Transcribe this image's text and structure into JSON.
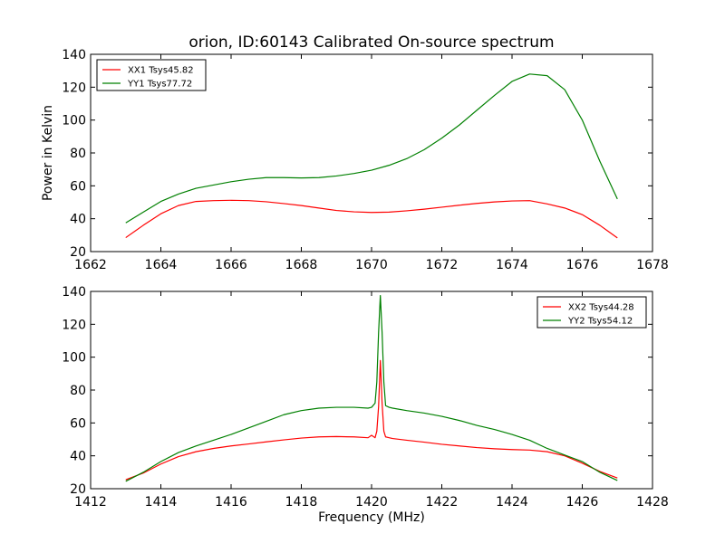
{
  "chart_data": [
    {
      "type": "line",
      "title": "orion, ID:60143 Calibrated On-source spectrum",
      "xlabel": "",
      "ylabel": "Power in Kelvin",
      "xlim": [
        1662,
        1678
      ],
      "ylim": [
        20,
        140
      ],
      "xticks": [
        "1662",
        "1664",
        "1666",
        "1668",
        "1670",
        "1672",
        "1674",
        "1676",
        "1678"
      ],
      "yticks": [
        "20",
        "40",
        "60",
        "80",
        "100",
        "120",
        "140"
      ],
      "legend_position": "top-left",
      "series": [
        {
          "name": "XX1 Tsys45.82",
          "color": "#ff0000",
          "x": [
            1663.0,
            1663.5,
            1664.0,
            1664.5,
            1665.0,
            1665.5,
            1666.0,
            1666.5,
            1667.0,
            1667.5,
            1668.0,
            1668.5,
            1669.0,
            1669.5,
            1670.0,
            1670.5,
            1671.0,
            1671.5,
            1672.0,
            1672.5,
            1673.0,
            1673.5,
            1674.0,
            1674.5,
            1675.0,
            1675.5,
            1676.0,
            1676.5,
            1677.0
          ],
          "values": [
            28.5,
            36.0,
            43.0,
            48.0,
            50.5,
            51.0,
            51.2,
            51.0,
            50.3,
            49.2,
            48.0,
            46.5,
            45.0,
            44.2,
            43.8,
            44.0,
            44.8,
            45.8,
            47.0,
            48.2,
            49.3,
            50.2,
            50.8,
            51.0,
            49.0,
            46.5,
            42.5,
            36.0,
            28.3
          ]
        },
        {
          "name": "YY1 Tsys77.72",
          "color": "#008000",
          "x": [
            1663.0,
            1663.5,
            1664.0,
            1664.5,
            1665.0,
            1665.5,
            1666.0,
            1666.5,
            1667.0,
            1667.5,
            1668.0,
            1668.5,
            1669.0,
            1669.5,
            1670.0,
            1670.5,
            1671.0,
            1671.5,
            1672.0,
            1672.5,
            1673.0,
            1673.5,
            1674.0,
            1674.5,
            1675.0,
            1675.5,
            1676.0,
            1676.5,
            1677.0
          ],
          "values": [
            37.5,
            44.0,
            50.5,
            55.0,
            58.5,
            60.5,
            62.5,
            64.0,
            65.0,
            65.0,
            64.8,
            65.0,
            66.0,
            67.5,
            69.5,
            72.5,
            76.5,
            82.0,
            89.0,
            97.0,
            106.0,
            115.0,
            123.5,
            128.0,
            127.0,
            118.5,
            100.0,
            75.0,
            52.0
          ]
        }
      ]
    },
    {
      "type": "line",
      "title": "",
      "xlabel": "Frequency (MHz)",
      "ylabel": "",
      "xlim": [
        1412,
        1428
      ],
      "ylim": [
        20,
        140
      ],
      "xticks": [
        "1412",
        "1414",
        "1416",
        "1418",
        "1420",
        "1422",
        "1424",
        "1426",
        "1428"
      ],
      "yticks": [
        "20",
        "40",
        "60",
        "80",
        "100",
        "120",
        "140"
      ],
      "legend_position": "top-right",
      "series": [
        {
          "name": "XX2 Tsys44.28",
          "color": "#ff0000",
          "x": [
            1413.0,
            1413.5,
            1414.0,
            1414.5,
            1415.0,
            1415.5,
            1416.0,
            1416.5,
            1417.0,
            1417.5,
            1418.0,
            1418.5,
            1419.0,
            1419.5,
            1419.9,
            1420.0,
            1420.1,
            1420.15,
            1420.2,
            1420.25,
            1420.3,
            1420.35,
            1420.4,
            1420.5,
            1420.6,
            1421.0,
            1421.5,
            1422.0,
            1422.5,
            1423.0,
            1423.5,
            1424.0,
            1424.5,
            1425.0,
            1425.5,
            1426.0,
            1426.5,
            1427.0
          ],
          "values": [
            25.5,
            29.5,
            35.0,
            39.5,
            42.5,
            44.5,
            46.0,
            47.2,
            48.5,
            49.7,
            50.8,
            51.5,
            51.7,
            51.5,
            51.0,
            52.5,
            51.0,
            55.0,
            70.0,
            98.0,
            72.0,
            55.0,
            51.5,
            51.0,
            50.5,
            49.5,
            48.3,
            47.0,
            46.0,
            45.0,
            44.3,
            43.8,
            43.5,
            42.5,
            40.0,
            35.5,
            30.5,
            26.5
          ]
        },
        {
          "name": "YY2 Tsys54.12",
          "color": "#008000",
          "x": [
            1413.0,
            1413.5,
            1414.0,
            1414.5,
            1415.0,
            1415.5,
            1416.0,
            1416.5,
            1417.0,
            1417.5,
            1418.0,
            1418.5,
            1419.0,
            1419.5,
            1419.9,
            1420.0,
            1420.1,
            1420.15,
            1420.2,
            1420.25,
            1420.3,
            1420.35,
            1420.4,
            1420.5,
            1420.6,
            1421.0,
            1421.5,
            1422.0,
            1422.5,
            1423.0,
            1423.5,
            1424.0,
            1424.5,
            1425.0,
            1425.5,
            1426.0,
            1426.5,
            1427.0
          ],
          "values": [
            24.5,
            30.0,
            36.5,
            42.0,
            46.0,
            49.5,
            53.0,
            57.0,
            61.0,
            65.0,
            67.5,
            69.0,
            69.5,
            69.5,
            69.0,
            69.5,
            72.0,
            85.0,
            115.0,
            137.5,
            115.0,
            85.0,
            70.5,
            69.5,
            69.0,
            67.5,
            66.0,
            64.0,
            61.5,
            58.5,
            56.0,
            53.0,
            49.5,
            44.5,
            40.5,
            36.5,
            30.0,
            25.0
          ]
        }
      ]
    }
  ]
}
